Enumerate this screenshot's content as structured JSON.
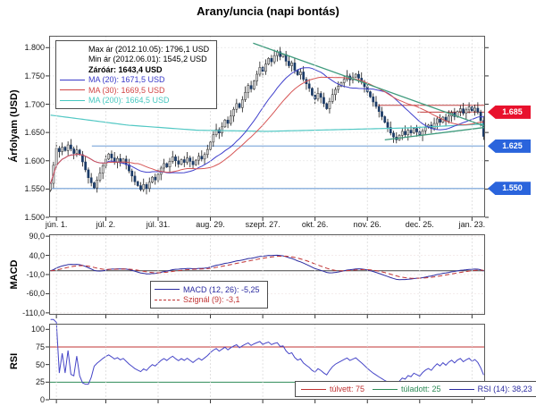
{
  "title": "Arany/uncia (napi bontás)",
  "chart_data": [
    {
      "type": "candlestick",
      "name": "price",
      "ylabel": "Árfolyam (USD)",
      "ylim": [
        1500,
        1821
      ],
      "yticks": [
        {
          "v": 1800,
          "label": "1.800"
        },
        {
          "v": 1750,
          "label": "1.750"
        },
        {
          "v": 1700,
          "label": "1.700"
        },
        {
          "v": 1650,
          "label": "1.650"
        },
        {
          "v": 1600,
          "label": "1.600"
        },
        {
          "v": 1550,
          "label": "1.550"
        },
        {
          "v": 1500,
          "label": "1.500"
        }
      ],
      "xticks": [
        {
          "i": 2,
          "label": "jún. 1."
        },
        {
          "i": 19,
          "label": "júl. 2."
        },
        {
          "i": 37,
          "label": "júl. 31."
        },
        {
          "i": 55,
          "label": "aug. 29."
        },
        {
          "i": 73,
          "label": "szept. 27."
        },
        {
          "i": 91,
          "label": "okt. 26."
        },
        {
          "i": 109,
          "label": "nov. 26."
        },
        {
          "i": 127,
          "label": "dec. 25."
        },
        {
          "i": 145,
          "label": "jan. 23."
        }
      ],
      "legend_rows": [
        {
          "label": "Max ár (2012.10.05): 1796,1 USD",
          "color": "#000000",
          "swatch": null,
          "bold": false
        },
        {
          "label": "Min ár (2012.06.01): 1545,2 USD",
          "color": "#000000",
          "swatch": null,
          "bold": false
        },
        {
          "label": "Záróár: 1643,4 USD",
          "color": "#000000",
          "swatch": null,
          "bold": true
        },
        {
          "label": "MA (20): 1671,5 USD",
          "color": "#3a3ac8",
          "swatch": "solid",
          "bold": false
        },
        {
          "label": "MA (30): 1669,5 USD",
          "color": "#d24545",
          "swatch": "solid",
          "bold": false
        },
        {
          "label": "MA (200): 1664,5 USD",
          "color": "#46c8c0",
          "swatch": "solid",
          "bold": false
        }
      ],
      "closes": [
        1560,
        1592,
        1622,
        1616,
        1624,
        1618,
        1628,
        1621,
        1613,
        1619,
        1611,
        1598,
        1584,
        1570,
        1561,
        1552,
        1566,
        1578,
        1591,
        1603,
        1612,
        1605,
        1597,
        1604,
        1596,
        1603,
        1593,
        1582,
        1573,
        1563,
        1556,
        1549,
        1558,
        1551,
        1562,
        1571,
        1566,
        1576,
        1587,
        1595,
        1589,
        1599,
        1607,
        1600,
        1594,
        1602,
        1597,
        1605,
        1599,
        1593,
        1601,
        1608,
        1603,
        1611,
        1620,
        1633,
        1646,
        1655,
        1649,
        1660,
        1672,
        1666,
        1679,
        1691,
        1701,
        1694,
        1708,
        1721,
        1733,
        1727,
        1741,
        1753,
        1765,
        1758,
        1771,
        1781,
        1775,
        1786,
        1793,
        1784,
        1788,
        1776,
        1768,
        1773,
        1760,
        1752,
        1757,
        1744,
        1736,
        1728,
        1716,
        1709,
        1719,
        1712,
        1701,
        1692,
        1705,
        1717,
        1726,
        1732,
        1738,
        1744,
        1750,
        1743,
        1748,
        1753,
        1746,
        1739,
        1731,
        1722,
        1713,
        1704,
        1696,
        1687,
        1678,
        1668,
        1659,
        1649,
        1642,
        1637,
        1645,
        1652,
        1646,
        1654,
        1649,
        1657,
        1651,
        1645,
        1653,
        1659,
        1663,
        1657,
        1666,
        1674,
        1668,
        1677,
        1670,
        1679,
        1685,
        1678,
        1687,
        1692,
        1684,
        1690,
        1695,
        1688,
        1693,
        1686,
        1671,
        1643
      ],
      "first_open": 1548,
      "wick_overrides": {
        "0": {
          "low": 1545
        },
        "31": {
          "low": 1546
        },
        "78": {
          "high": 1796
        }
      },
      "extremes": {
        "max_date": "2012.10.05",
        "max": 1796.1,
        "min_date": "2012.06.01",
        "min": 1545.2,
        "close": 1643.4
      },
      "ma_overlays": [
        {
          "period": 20,
          "value": 1671.5,
          "color": "#4040cc"
        },
        {
          "period": 30,
          "value": 1669.5,
          "color": "#d65555"
        }
      ],
      "ma200": {
        "period": 200,
        "value": 1664.5,
        "color": "#52c8c4",
        "anchors": [
          [
            0,
            1681
          ],
          [
            0.18,
            1663
          ],
          [
            0.34,
            1654
          ],
          [
            0.5,
            1652
          ],
          [
            0.66,
            1655
          ],
          [
            0.82,
            1658
          ],
          [
            1,
            1665
          ]
        ]
      },
      "trendlines": [
        {
          "x1": 0.468,
          "p1": 1808,
          "x2": 1,
          "p2": 1661
        },
        {
          "x1": 0.77,
          "p1": 1637,
          "x2": 1,
          "p2": 1659
        }
      ],
      "levels": [
        {
          "price": 1698,
          "from": 0.755,
          "to": 1,
          "color": "#c04040",
          "w": 1
        },
        {
          "price": 1686,
          "from": 0.845,
          "to": 1,
          "color": "#c04040",
          "w": 1
        },
        {
          "price": 1626,
          "from": 0.098,
          "to": 1,
          "color": "#93b6e0",
          "w": 1.4
        },
        {
          "price": 1551,
          "from": 0,
          "to": 1,
          "color": "#93b6e0",
          "w": 1.4
        }
      ],
      "tags": [
        {
          "label": "1.685",
          "price": 1686,
          "color": "#e8112d"
        },
        {
          "label": "1.625",
          "price": 1626,
          "color": "#2a64dc"
        },
        {
          "label": "1.550",
          "price": 1551,
          "color": "#2a64dc"
        }
      ],
      "candle_up_color": "#d9d9d9",
      "candle_down_color": "#1b3a66",
      "wick_color": "#1a1a1a",
      "trend_color": "#3f9b7d"
    },
    {
      "type": "line",
      "name": "macd",
      "ylabel": "MACD",
      "ylim": [
        -115,
        95
      ],
      "yticks": [
        {
          "v": 90,
          "label": "90,0"
        },
        {
          "v": 40,
          "label": "40,0"
        },
        {
          "v": -10,
          "label": "-10,0"
        },
        {
          "v": -60,
          "label": "-60,0"
        },
        {
          "v": -110,
          "label": "-110,0"
        }
      ],
      "zero_line": 0,
      "derived_from": "price closes, MACD(12,26) with signal EMA(9)",
      "series": [
        {
          "name": "MACD (12, 26)",
          "current": -5.25,
          "color": "#2b2ba0",
          "style": "solid"
        },
        {
          "name": "Szignál (9)",
          "current": -3.1,
          "color": "#c03333",
          "style": "dashed"
        }
      ],
      "legend_rows": [
        {
          "label": "MACD (12, 26): -5,25",
          "color": "#2b2ba0",
          "swatch": "solid",
          "bold": false
        },
        {
          "label": "Szignál (9): -3,1",
          "color": "#c03333",
          "swatch": "dashed",
          "bold": false
        }
      ]
    },
    {
      "type": "line",
      "name": "rsi",
      "ylabel": "RSI",
      "ylim": [
        0,
        108
      ],
      "yticks": [
        {
          "v": 100,
          "label": "100"
        },
        {
          "v": 75,
          "label": "75"
        },
        {
          "v": 50,
          "label": "50"
        },
        {
          "v": 25,
          "label": "25"
        },
        {
          "v": 0,
          "label": "0"
        }
      ],
      "overbought": {
        "value": 75,
        "color": "#c03333"
      },
      "oversold": {
        "value": 25,
        "color": "#2e8b57"
      },
      "derived_from": "price closes, RSI(14)",
      "series": [
        {
          "name": "RSI (14)",
          "current": 38.23,
          "color": "#4646c8"
        }
      ],
      "legend_rows": [
        {
          "label": "túlvett: 75",
          "color": "#c03333",
          "swatch": "solid",
          "bold": false
        },
        {
          "label": "túladott: 25",
          "color": "#2e8b57",
          "swatch": "solid",
          "bold": false
        },
        {
          "label": "RSI (14): 38,23",
          "color": "#2b2ba0",
          "swatch": "solid",
          "bold": false
        }
      ]
    }
  ]
}
